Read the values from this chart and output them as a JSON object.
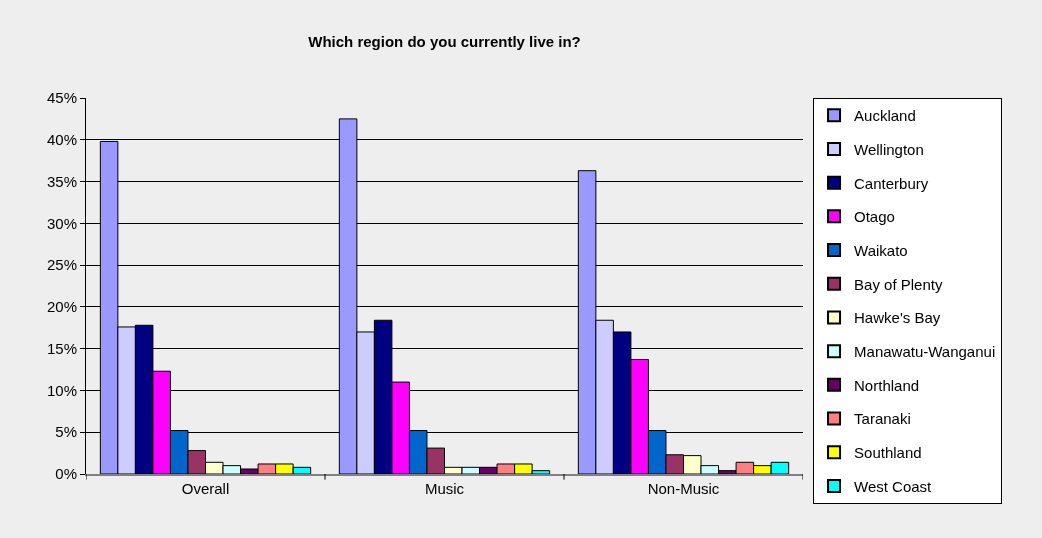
{
  "chart_data": {
    "type": "bar",
    "title": "Which region do you currently live in?",
    "categories": [
      "Overall",
      "Music",
      "Non-Music"
    ],
    "series": [
      {
        "name": "Auckland",
        "color": "#9999ff",
        "values": [
          39.8,
          42.5,
          36.3
        ]
      },
      {
        "name": "Wellington",
        "color": "#ccccff",
        "values": [
          17.6,
          17.0,
          18.4
        ]
      },
      {
        "name": "Canterbury",
        "color": "#000080",
        "values": [
          17.8,
          18.4,
          17.0
        ]
      },
      {
        "name": "Otago",
        "color": "#ff00ff",
        "values": [
          12.3,
          11.0,
          13.7
        ]
      },
      {
        "name": "Waikato",
        "color": "#0066cc",
        "values": [
          5.2,
          5.2,
          5.2
        ]
      },
      {
        "name": "Bay of Plenty",
        "color": "#993366",
        "values": [
          2.8,
          3.1,
          2.3
        ]
      },
      {
        "name": "Hawke's Bay",
        "color": "#ffffcc",
        "values": [
          1.4,
          0.8,
          2.2
        ]
      },
      {
        "name": "Manawatu-Wanganui",
        "color": "#ccffff",
        "values": [
          1.0,
          0.8,
          1.0
        ]
      },
      {
        "name": "Northland",
        "color": "#660066",
        "values": [
          0.6,
          0.8,
          0.4
        ]
      },
      {
        "name": "Taranaki",
        "color": "#ff8080",
        "values": [
          1.2,
          1.2,
          1.4
        ]
      },
      {
        "name": "Southland",
        "color": "#ffff00",
        "values": [
          1.2,
          1.2,
          1.0
        ]
      },
      {
        "name": "West Coast",
        "color": "#00ffff",
        "values": [
          0.8,
          0.4,
          1.4
        ]
      }
    ],
    "ylim": [
      0,
      45
    ],
    "yticks": [
      {
        "value": 0,
        "label": "0%"
      },
      {
        "value": 5,
        "label": "5%"
      },
      {
        "value": 10,
        "label": "10%"
      },
      {
        "value": 15,
        "label": "15%"
      },
      {
        "value": 20,
        "label": "20%"
      },
      {
        "value": 25,
        "label": "25%"
      },
      {
        "value": 30,
        "label": "30%"
      },
      {
        "value": 35,
        "label": "35%"
      },
      {
        "value": 40,
        "label": "40%"
      },
      {
        "value": 45,
        "label": "45%"
      }
    ],
    "grid": "y",
    "legend": "right"
  }
}
